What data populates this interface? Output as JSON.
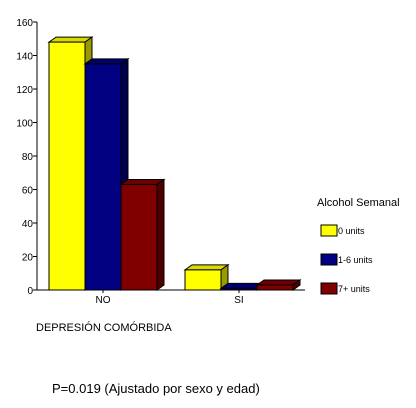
{
  "chart_data": {
    "type": "bar",
    "style": "3d",
    "categories": [
      "NO",
      "SI"
    ],
    "series": [
      {
        "name": "0 units",
        "color": "#ffff00",
        "values": [
          148,
          12
        ]
      },
      {
        "name": "1-6 units",
        "color": "#000080",
        "values": [
          135,
          1
        ]
      },
      {
        "name": "7+ units",
        "color": "#800000",
        "values": [
          63,
          3
        ]
      }
    ],
    "y_ticks": [
      0,
      20,
      40,
      60,
      80,
      100,
      120,
      140,
      160
    ],
    "ylim": [
      0,
      160
    ],
    "xlabel": "DEPRESIÓN COMÓRBIDA",
    "ylabel": "",
    "grid": false,
    "legend_title": "Alcohol Semanal",
    "legend_position": "right",
    "footnote": "P=0.019 (Ajustado por sexo y edad)"
  }
}
